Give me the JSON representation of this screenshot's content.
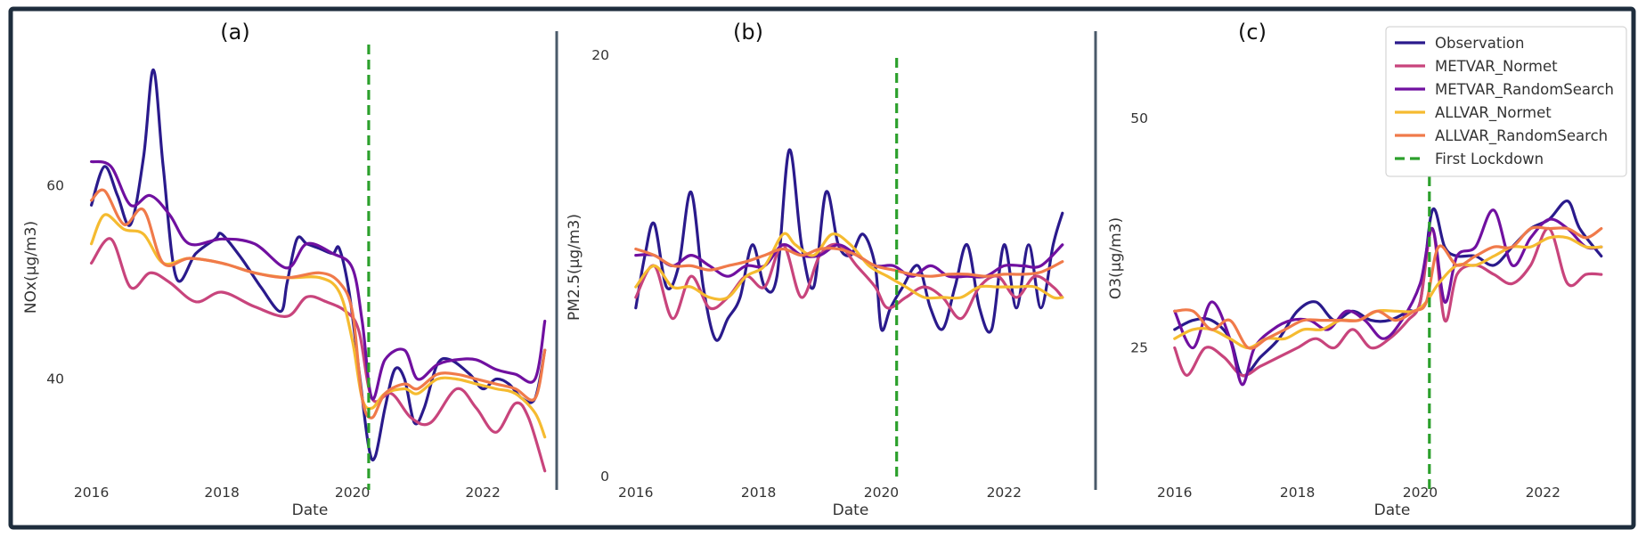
{
  "chart_data": [
    {
      "type": "line",
      "title": "(a)",
      "xlabel": "Date",
      "ylabel": "NOx(µg/m3)",
      "x_ticks": [
        "2016",
        "2018",
        "2020",
        "2022"
      ],
      "x_tick_values": [
        2016,
        2018,
        2020,
        2022
      ],
      "y_ticks": [
        "40",
        "60"
      ],
      "y_tick_values": [
        40,
        60
      ],
      "xlim": [
        2015.8,
        2023.2
      ],
      "ylim": [
        29,
        76
      ],
      "lockdown_x": 2020.25,
      "series": [
        {
          "name": "Observation",
          "color": "#2a1a8c",
          "x": [
            2016.0,
            2016.2,
            2016.4,
            2016.6,
            2016.8,
            2016.95,
            2017.1,
            2017.3,
            2017.6,
            2017.9,
            2018.0,
            2018.3,
            2018.6,
            2018.9,
            2019.0,
            2019.15,
            2019.3,
            2019.5,
            2019.7,
            2019.8,
            2019.95,
            2020.1,
            2020.25,
            2020.35,
            2020.5,
            2020.65,
            2020.8,
            2020.95,
            2021.1,
            2021.3,
            2021.5,
            2021.8,
            2022.0,
            2022.2,
            2022.4,
            2022.6,
            2022.8,
            2022.95
          ],
          "y": [
            58,
            62,
            59,
            56,
            63,
            72,
            62,
            50.5,
            53,
            54.5,
            55,
            52.5,
            49.5,
            47,
            50,
            54.5,
            54,
            53.5,
            53,
            53.5,
            49,
            41,
            33,
            32,
            37,
            41,
            40,
            35.5,
            37,
            41.5,
            42,
            40.5,
            39,
            40,
            39.5,
            38,
            38,
            43
          ]
        },
        {
          "name": "METVAR_Normet",
          "color": "#c8447c",
          "x": [
            2016.0,
            2016.3,
            2016.6,
            2016.9,
            2017.2,
            2017.6,
            2018.0,
            2018.5,
            2019.0,
            2019.3,
            2019.6,
            2019.9,
            2020.1,
            2020.3,
            2020.6,
            2020.9,
            2021.2,
            2021.6,
            2021.9,
            2022.2,
            2022.5,
            2022.7,
            2022.95
          ],
          "y": [
            52,
            54.5,
            49.5,
            51,
            50,
            48,
            49,
            47.5,
            46.5,
            48.5,
            48,
            47,
            45,
            38,
            38.5,
            36,
            35.5,
            39,
            37,
            34.5,
            37.5,
            36,
            30.5
          ]
        },
        {
          "name": "METVAR_RandomSearch",
          "color": "#7010a0",
          "x": [
            2016.0,
            2016.3,
            2016.6,
            2016.9,
            2017.2,
            2017.5,
            2018.0,
            2018.5,
            2019.0,
            2019.3,
            2019.7,
            2020.0,
            2020.15,
            2020.3,
            2020.5,
            2020.8,
            2021.0,
            2021.3,
            2021.6,
            2021.9,
            2022.2,
            2022.5,
            2022.8,
            2022.95
          ],
          "y": [
            62.5,
            62,
            58,
            59,
            57,
            54,
            54.5,
            54,
            51.5,
            54,
            53,
            51.5,
            46,
            38,
            42,
            43,
            40,
            41.5,
            42,
            42,
            41,
            40.5,
            40,
            46
          ]
        },
        {
          "name": "ALLVAR_Normet",
          "color": "#f5bb30",
          "x": [
            2016.0,
            2016.2,
            2016.5,
            2016.8,
            2017.1,
            2017.5,
            2018.0,
            2018.5,
            2019.0,
            2019.5,
            2019.8,
            2020.0,
            2020.15,
            2020.3,
            2020.5,
            2020.8,
            2021.0,
            2021.3,
            2021.6,
            2021.9,
            2022.2,
            2022.5,
            2022.8,
            2022.95
          ],
          "y": [
            54,
            57,
            55.5,
            55,
            52,
            52.5,
            52,
            51,
            50.5,
            50.5,
            49,
            44,
            38,
            37,
            38.5,
            39,
            38.5,
            40,
            40,
            39.5,
            39,
            38.5,
            36.5,
            34
          ]
        },
        {
          "name": "ALLVAR_RandomSearch",
          "color": "#f07a4a",
          "x": [
            2016.0,
            2016.2,
            2016.5,
            2016.8,
            2017.1,
            2017.5,
            2018.0,
            2018.5,
            2019.0,
            2019.5,
            2019.8,
            2020.0,
            2020.15,
            2020.3,
            2020.5,
            2020.8,
            2021.0,
            2021.3,
            2021.6,
            2021.9,
            2022.2,
            2022.5,
            2022.8,
            2022.95
          ],
          "y": [
            58.5,
            59.5,
            56,
            57.5,
            52,
            52.5,
            52,
            51,
            50.5,
            51,
            50,
            47,
            38,
            36,
            38.5,
            39.5,
            39,
            40.5,
            40.5,
            40,
            39.5,
            39,
            38,
            43
          ]
        }
      ]
    },
    {
      "type": "line",
      "title": "(b)",
      "xlabel": "Date",
      "ylabel": "PM2.5(µg/m3)",
      "x_ticks": [
        "2016",
        "2018",
        "2020",
        "2022"
      ],
      "x_tick_values": [
        2016,
        2018,
        2020,
        2022
      ],
      "y_ticks": [
        "0",
        "20"
      ],
      "y_tick_values": [
        0,
        20
      ],
      "xlim": [
        2015.8,
        2023.2
      ],
      "ylim": [
        0,
        20.5
      ],
      "lockdown_x": 2020.25,
      "series": [
        {
          "name": "Observation",
          "color": "#2a1a8c",
          "x": [
            2016.0,
            2016.15,
            2016.3,
            2016.5,
            2016.7,
            2016.9,
            2017.1,
            2017.3,
            2017.5,
            2017.7,
            2017.9,
            2018.1,
            2018.3,
            2018.5,
            2018.7,
            2018.9,
            2019.1,
            2019.3,
            2019.5,
            2019.7,
            2019.9,
            2020.0,
            2020.15,
            2020.35,
            2020.6,
            2020.8,
            2021.0,
            2021.2,
            2021.4,
            2021.6,
            2021.8,
            2022.0,
            2022.2,
            2022.4,
            2022.6,
            2022.8,
            2022.95
          ],
          "y": [
            8,
            10.5,
            12,
            9,
            10,
            13.5,
            9,
            6.5,
            7.5,
            8.5,
            11,
            9,
            9.5,
            15.5,
            11,
            9,
            13.5,
            11,
            10.5,
            11.5,
            10,
            7,
            8,
            9,
            10,
            8,
            7,
            9,
            11,
            8,
            7,
            11,
            8,
            11,
            8,
            11,
            12.5
          ]
        },
        {
          "name": "METVAR_Normet",
          "color": "#c8447c",
          "x": [
            2016.0,
            2016.3,
            2016.6,
            2016.9,
            2017.2,
            2017.5,
            2017.8,
            2018.1,
            2018.4,
            2018.7,
            2019.0,
            2019.3,
            2019.6,
            2019.9,
            2020.1,
            2020.4,
            2020.7,
            2021.0,
            2021.3,
            2021.6,
            2021.9,
            2022.2,
            2022.5,
            2022.8,
            2022.95
          ],
          "y": [
            8.5,
            10,
            7.5,
            9.5,
            8,
            8.5,
            9.5,
            9,
            11,
            8.5,
            10.5,
            11,
            10,
            9,
            8,
            8.5,
            9,
            8.5,
            7.5,
            9,
            9.5,
            8.5,
            9.5,
            9,
            8.5
          ]
        },
        {
          "name": "METVAR_RandomSearch",
          "color": "#7010a0",
          "x": [
            2016.0,
            2016.3,
            2016.6,
            2016.9,
            2017.2,
            2017.5,
            2017.8,
            2018.1,
            2018.4,
            2018.7,
            2019.0,
            2019.3,
            2019.6,
            2019.9,
            2020.2,
            2020.5,
            2020.8,
            2021.1,
            2021.4,
            2021.7,
            2022.0,
            2022.3,
            2022.6,
            2022.95
          ],
          "y": [
            10.5,
            10.5,
            10,
            10.5,
            10,
            9.5,
            10,
            10,
            11,
            10.5,
            10.5,
            11,
            10.5,
            10,
            10,
            9.5,
            10,
            9.5,
            9.5,
            9.5,
            10,
            10,
            10,
            11
          ]
        },
        {
          "name": "ALLVAR_Normet",
          "color": "#f5bb30",
          "x": [
            2016.0,
            2016.3,
            2016.6,
            2016.9,
            2017.2,
            2017.5,
            2017.8,
            2018.1,
            2018.4,
            2018.6,
            2018.9,
            2019.2,
            2019.5,
            2019.8,
            2020.1,
            2020.4,
            2020.7,
            2021.0,
            2021.3,
            2021.6,
            2021.9,
            2022.2,
            2022.5,
            2022.8,
            2022.95
          ],
          "y": [
            9,
            10,
            9,
            9,
            8.5,
            8.5,
            9.5,
            10,
            11.5,
            11,
            10.5,
            11.5,
            11,
            10,
            9.5,
            9,
            8.5,
            8.5,
            8.5,
            9,
            9,
            9,
            9,
            8.5,
            8.5
          ]
        },
        {
          "name": "ALLVAR_RandomSearch",
          "color": "#f07a4a",
          "x": [
            2016.0,
            2016.3,
            2016.6,
            2016.9,
            2017.2,
            2017.5,
            2017.8,
            2018.1,
            2018.4,
            2018.7,
            2019.0,
            2019.3,
            2019.6,
            2019.9,
            2020.2,
            2020.5,
            2020.8,
            2021.1,
            2021.4,
            2021.7,
            2022.0,
            2022.3,
            2022.6,
            2022.95
          ],
          "y": [
            10.8,
            10.5,
            10,
            10,
            9.8,
            10,
            10.2,
            10.5,
            10.8,
            10.5,
            10.8,
            10.8,
            10.5,
            10,
            9.8,
            9.6,
            9.5,
            9.6,
            9.6,
            9.5,
            9.6,
            9.6,
            9.7,
            10.2
          ]
        }
      ]
    },
    {
      "type": "line",
      "title": "(c)",
      "xlabel": "Date",
      "ylabel": "O3(µg/m3)",
      "x_ticks": [
        "2016",
        "2018",
        "2020",
        "2022"
      ],
      "x_tick_values": [
        2016,
        2018,
        2020,
        2022
      ],
      "y_ticks": [
        "25",
        "50"
      ],
      "y_tick_values": [
        25,
        50
      ],
      "xlim": [
        2015.8,
        2023.2
      ],
      "ylim": [
        10,
        60
      ],
      "lockdown_x": 2020.15,
      "series": [
        {
          "name": "Observation",
          "color": "#2a1a8c",
          "x": [
            2016.0,
            2016.3,
            2016.6,
            2016.9,
            2017.1,
            2017.4,
            2017.7,
            2018.0,
            2018.3,
            2018.6,
            2018.9,
            2019.2,
            2019.5,
            2019.8,
            2020.0,
            2020.2,
            2020.4,
            2020.6,
            2020.9,
            2021.2,
            2021.5,
            2021.8,
            2022.1,
            2022.4,
            2022.6,
            2022.95
          ],
          "y": [
            27,
            28,
            28,
            26,
            22,
            24,
            26,
            29,
            30,
            28,
            29,
            28,
            28,
            29,
            30,
            40,
            36,
            35,
            35,
            34,
            36,
            38,
            39,
            41,
            38,
            35
          ]
        },
        {
          "name": "METVAR_Normet",
          "color": "#c8447c",
          "x": [
            2016.0,
            2016.2,
            2016.5,
            2016.8,
            2017.1,
            2017.4,
            2017.7,
            2018.0,
            2018.3,
            2018.6,
            2018.9,
            2019.2,
            2019.5,
            2019.8,
            2020.0,
            2020.2,
            2020.4,
            2020.6,
            2020.9,
            2021.2,
            2021.5,
            2021.8,
            2022.1,
            2022.4,
            2022.7,
            2022.95
          ],
          "y": [
            25,
            22,
            25,
            24,
            22,
            23,
            24,
            25,
            26,
            25,
            27,
            25,
            26,
            28,
            30,
            38,
            28,
            33,
            34,
            33,
            32,
            34,
            38,
            32,
            33,
            33
          ]
        },
        {
          "name": "METVAR_RandomSearch",
          "color": "#7010a0",
          "x": [
            2016.0,
            2016.3,
            2016.6,
            2016.9,
            2017.1,
            2017.3,
            2017.6,
            2017.9,
            2018.2,
            2018.5,
            2018.8,
            2019.1,
            2019.4,
            2019.7,
            2020.0,
            2020.2,
            2020.4,
            2020.6,
            2020.9,
            2021.2,
            2021.5,
            2021.8,
            2022.1,
            2022.4,
            2022.7,
            2022.95
          ],
          "y": [
            29,
            25,
            30,
            26,
            21,
            25,
            27,
            28,
            28,
            27,
            29,
            28,
            26,
            28,
            32,
            38,
            30,
            35,
            36,
            40,
            34,
            37,
            39,
            38,
            36,
            36
          ]
        },
        {
          "name": "ALLVAR_Normet",
          "color": "#f5bb30",
          "x": [
            2016.0,
            2016.3,
            2016.6,
            2016.9,
            2017.2,
            2017.5,
            2017.8,
            2018.1,
            2018.4,
            2018.7,
            2019.0,
            2019.3,
            2019.6,
            2019.9,
            2020.1,
            2020.3,
            2020.6,
            2020.9,
            2021.2,
            2021.5,
            2021.8,
            2022.1,
            2022.4,
            2022.7,
            2022.95
          ],
          "y": [
            26,
            27,
            27,
            26,
            25,
            26,
            26,
            27,
            27,
            28,
            28,
            29,
            29,
            29,
            30,
            32,
            34,
            34,
            35,
            36,
            36,
            37,
            37,
            36,
            36
          ]
        },
        {
          "name": "ALLVAR_RandomSearch",
          "color": "#f07a4a",
          "x": [
            2016.0,
            2016.3,
            2016.6,
            2016.9,
            2017.2,
            2017.5,
            2017.8,
            2018.1,
            2018.4,
            2018.7,
            2019.0,
            2019.3,
            2019.6,
            2019.9,
            2020.1,
            2020.3,
            2020.6,
            2020.9,
            2021.2,
            2021.5,
            2021.8,
            2022.1,
            2022.4,
            2022.7,
            2022.95
          ],
          "y": [
            29,
            29,
            27,
            28,
            25,
            26,
            27,
            28,
            28,
            28,
            28,
            29,
            28,
            29,
            30,
            36,
            34,
            35,
            36,
            36,
            38,
            38,
            38,
            37,
            38
          ]
        }
      ]
    }
  ],
  "legend": {
    "items": [
      {
        "label": "Observation",
        "color": "#2a1a8c",
        "style": "solid"
      },
      {
        "label": "METVAR_Normet",
        "color": "#c8447c",
        "style": "solid"
      },
      {
        "label": "METVAR_RandomSearch",
        "color": "#7010a0",
        "style": "solid"
      },
      {
        "label": "ALLVAR_Normet",
        "color": "#f5bb30",
        "style": "solid"
      },
      {
        "label": "ALLVAR_RandomSearch",
        "color": "#f07a4a",
        "style": "solid"
      },
      {
        "label": "First Lockdown",
        "color": "#2ca02c",
        "style": "dashed"
      }
    ]
  }
}
